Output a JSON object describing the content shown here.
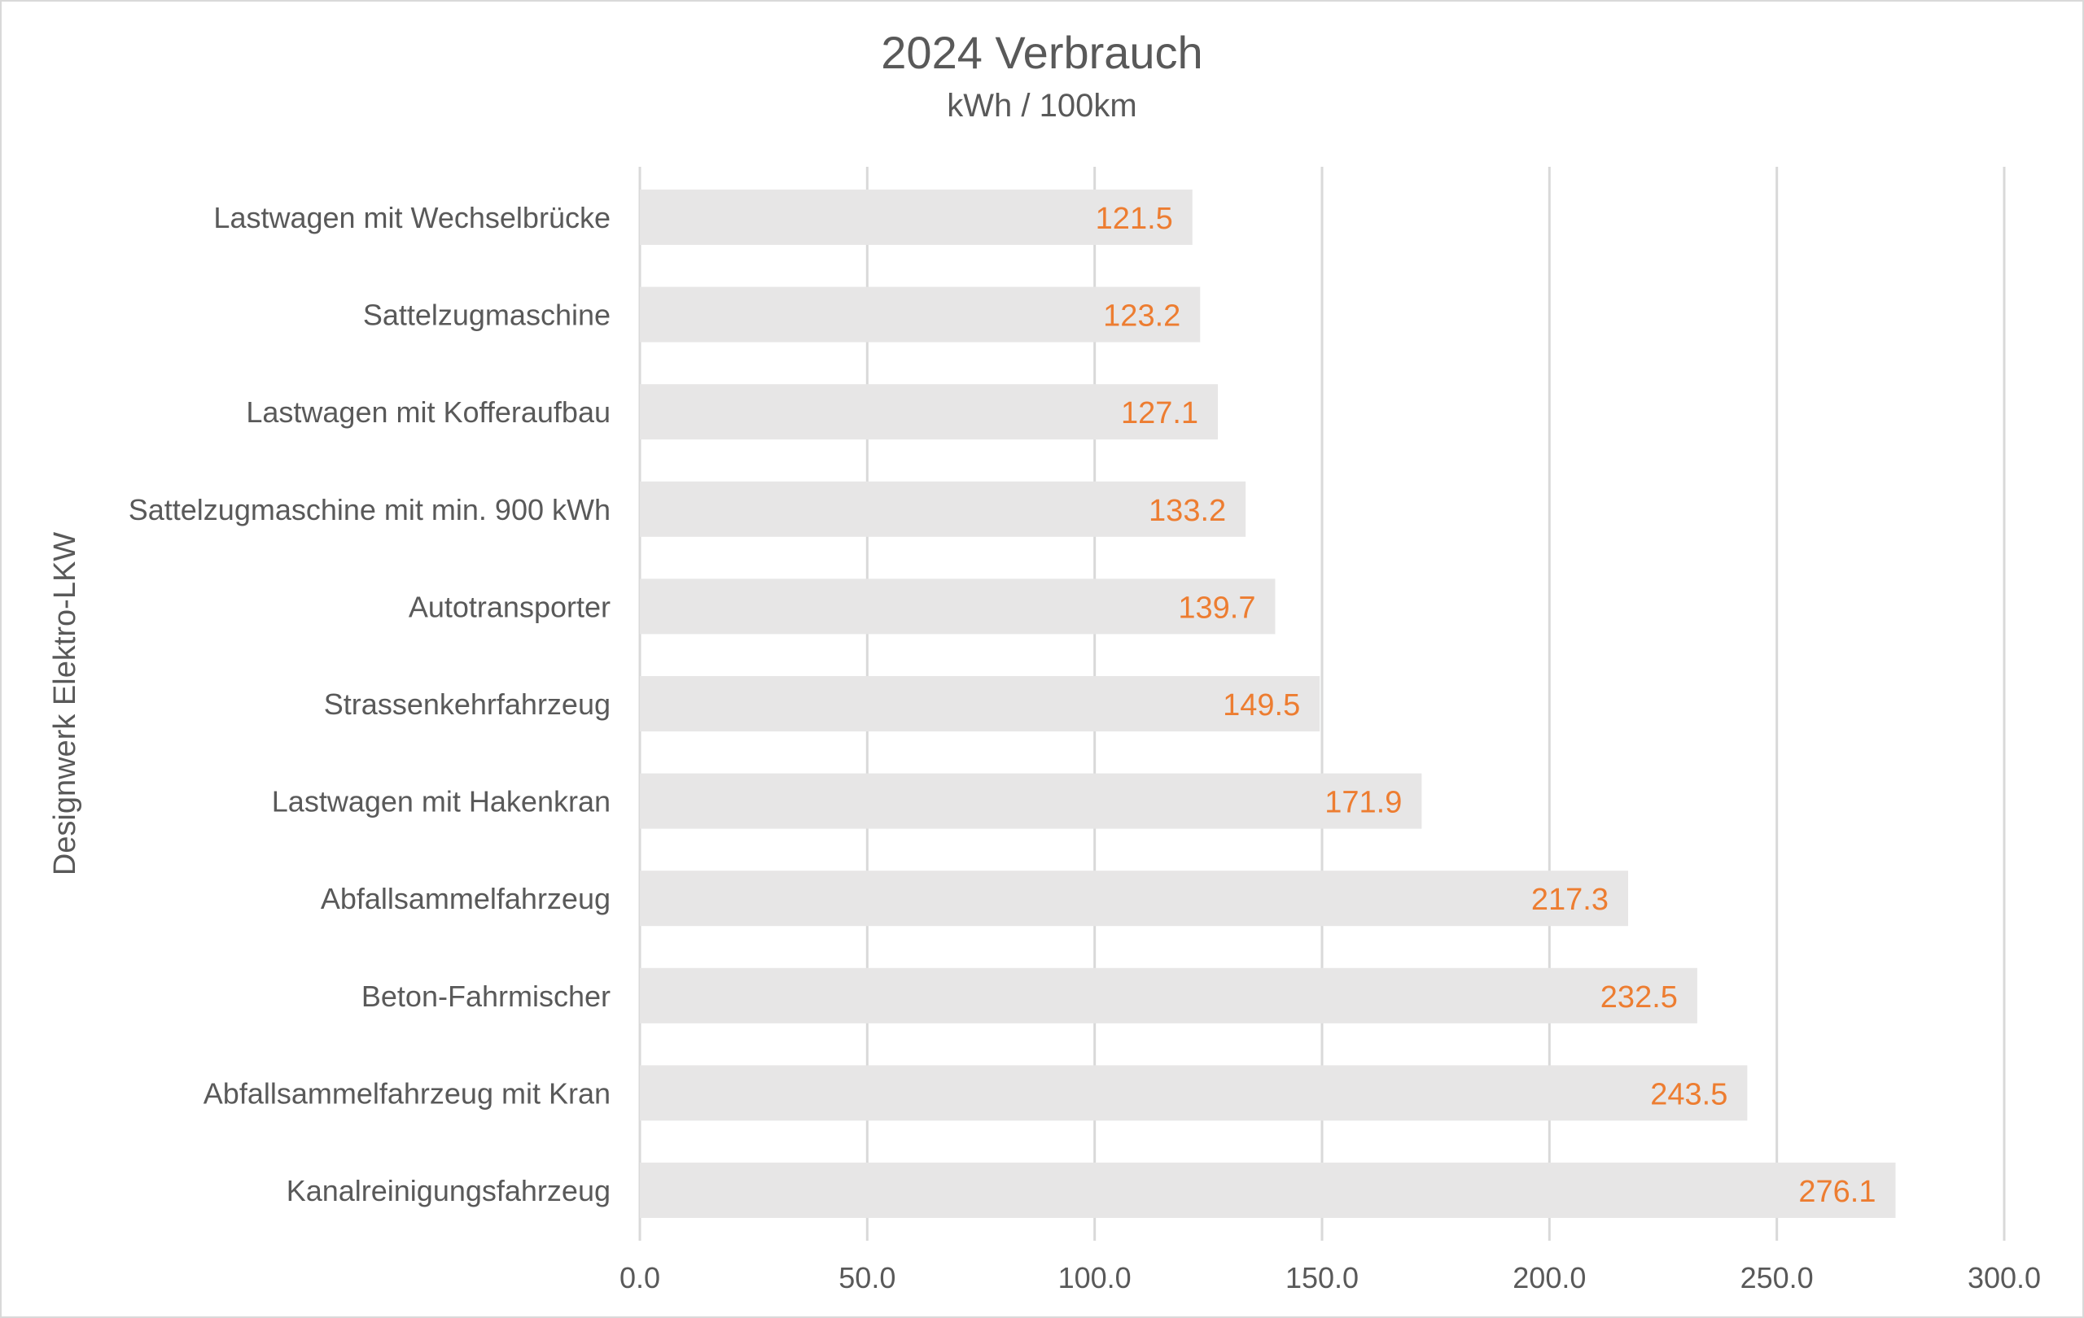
{
  "chart_data": {
    "type": "bar",
    "orientation": "horizontal",
    "title": "2024 Verbrauch",
    "subtitle": "kWh / 100km",
    "ylabel": "Designwerk Elektro-LKW",
    "xlabel": "",
    "xlim": [
      0,
      300
    ],
    "xticks": [
      "0.0",
      "50.0",
      "100.0",
      "150.0",
      "200.0",
      "250.0",
      "300.0"
    ],
    "grid": true,
    "categories": [
      "Lastwagen mit Wechselbrücke",
      "Sattelzugmaschine",
      "Lastwagen mit Kofferaufbau",
      "Sattelzugmaschine mit min. 900 kWh",
      "Autotransporter",
      "Strassenkehrfahrzeug",
      "Lastwagen mit Hakenkran",
      "Abfallsammelfahrzeug",
      "Beton-Fahrmischer",
      "Abfallsammelfahrzeug mit Kran",
      "Kanalreinigungsfahrzeug"
    ],
    "values": [
      121.5,
      123.2,
      127.1,
      133.2,
      139.7,
      149.5,
      171.9,
      217.3,
      232.5,
      243.5,
      276.1
    ],
    "labels": [
      "121.5",
      "123.2",
      "127.1",
      "133.2",
      "139.7",
      "149.5",
      "171.9",
      "217.3",
      "232.5",
      "243.5",
      "276.1"
    ],
    "colors": {
      "bar": "#e7e6e6",
      "value_label": "#ed7d31",
      "text": "#595959",
      "grid": "#d9d9d9"
    }
  }
}
